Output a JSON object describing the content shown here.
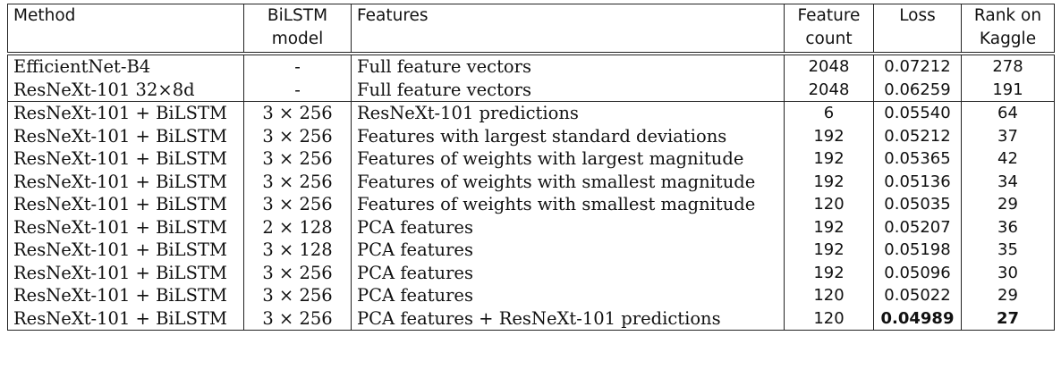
{
  "table": {
    "headers": {
      "row1": [
        "Method",
        "BiLSTM",
        "Features",
        "Feature",
        "Loss",
        "Rank on"
      ],
      "row2": [
        "",
        "model",
        "",
        "count",
        "",
        "Kaggle"
      ]
    },
    "group1": [
      {
        "method": "EfficientNet-B4",
        "bilstm": "-",
        "features": "Full feature vectors",
        "count": "2048",
        "loss": "0.07212",
        "rank": "278"
      },
      {
        "method": "ResNeXt-101 32×8d",
        "bilstm": "-",
        "features": "Full feature vectors",
        "count": "2048",
        "loss": "0.06259",
        "rank": "191"
      }
    ],
    "group2": [
      {
        "method": "ResNeXt-101 + BiLSTM",
        "bilstm": "3 × 256",
        "features": "ResNeXt-101 predictions",
        "count": "6",
        "loss": "0.05540",
        "rank": "64"
      },
      {
        "method": "ResNeXt-101 + BiLSTM",
        "bilstm": "3 × 256",
        "features": "Features with largest standard deviations",
        "count": "192",
        "loss": "0.05212",
        "rank": "37"
      },
      {
        "method": "ResNeXt-101 + BiLSTM",
        "bilstm": "3 × 256",
        "features": "Features of weights with largest magnitude",
        "count": "192",
        "loss": "0.05365",
        "rank": "42"
      },
      {
        "method": "ResNeXt-101 + BiLSTM",
        "bilstm": "3 × 256",
        "features": "Features of weights with smallest magnitude",
        "count": "192",
        "loss": "0.05136",
        "rank": "34"
      },
      {
        "method": "ResNeXt-101 + BiLSTM",
        "bilstm": "3 × 256",
        "features": "Features of weights with smallest magnitude",
        "count": "120",
        "loss": "0.05035",
        "rank": "29"
      },
      {
        "method": "ResNeXt-101 + BiLSTM",
        "bilstm": "2 × 128",
        "features": "PCA features",
        "count": "192",
        "loss": "0.05207",
        "rank": "36"
      },
      {
        "method": "ResNeXt-101 + BiLSTM",
        "bilstm": "3 × 128",
        "features": "PCA features",
        "count": "192",
        "loss": "0.05198",
        "rank": "35"
      },
      {
        "method": "ResNeXt-101 + BiLSTM",
        "bilstm": "3 × 256",
        "features": "PCA features",
        "count": "192",
        "loss": "0.05096",
        "rank": "30"
      },
      {
        "method": "ResNeXt-101 + BiLSTM",
        "bilstm": "3 × 256",
        "features": "PCA features",
        "count": "120",
        "loss": "0.05022",
        "rank": "29"
      },
      {
        "method": "ResNeXt-101 + BiLSTM",
        "bilstm": "3 × 256",
        "features": "PCA features + ResNeXt-101 predictions",
        "count": "120",
        "loss": "0.04989",
        "rank": "27"
      }
    ]
  }
}
